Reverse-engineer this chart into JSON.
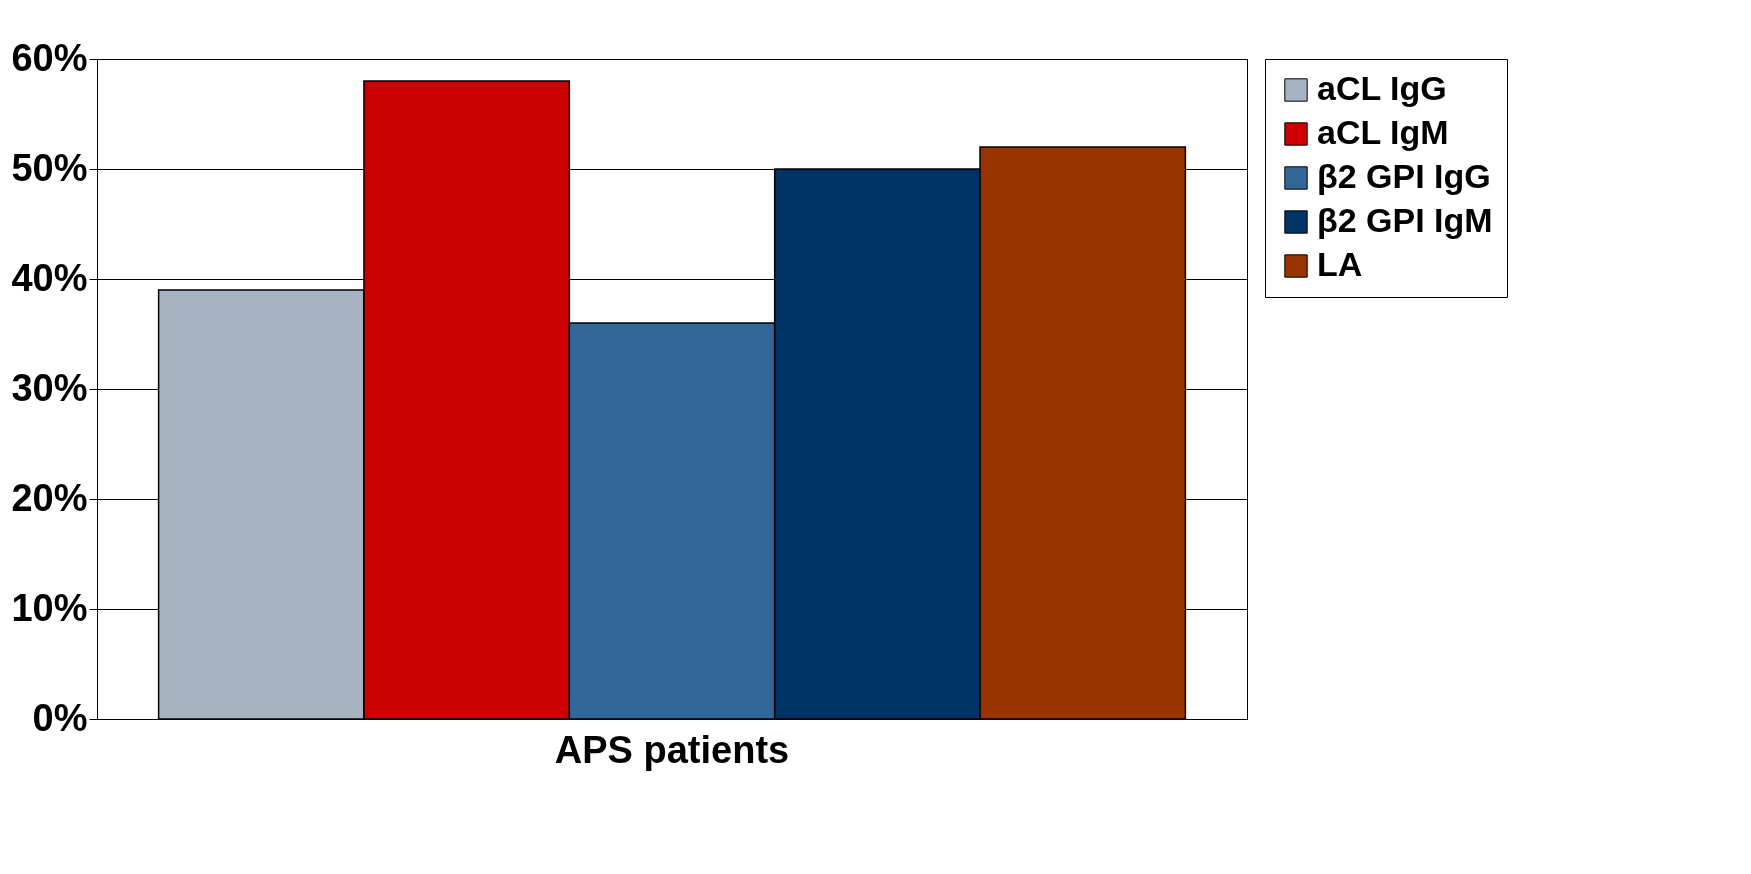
{
  "chart_data": {
    "type": "bar",
    "categories": [
      "APS patients"
    ],
    "series": [
      {
        "name": "aCL IgG",
        "color": "#a5b3c3",
        "values": [
          39
        ]
      },
      {
        "name": "aCL IgM",
        "color": "#cc0000",
        "values": [
          58
        ]
      },
      {
        "name": "β2 GPI IgG",
        "color": "#336699",
        "values": [
          36
        ]
      },
      {
        "name": "β2 GPI IgM",
        "color": "#003366",
        "values": [
          50
        ]
      },
      {
        "name": "LA",
        "color": "#993300",
        "values": [
          52
        ]
      }
    ],
    "ylim": [
      0,
      60
    ],
    "yticks": [
      {
        "value": 0,
        "label": "0%"
      },
      {
        "value": 10,
        "label": "10%"
      },
      {
        "value": 20,
        "label": "20%"
      },
      {
        "value": 30,
        "label": "30%"
      },
      {
        "value": 40,
        "label": "40%"
      },
      {
        "value": 50,
        "label": "50%"
      },
      {
        "value": 60,
        "label": "60%"
      }
    ],
    "grid": "y",
    "legend": "right"
  }
}
